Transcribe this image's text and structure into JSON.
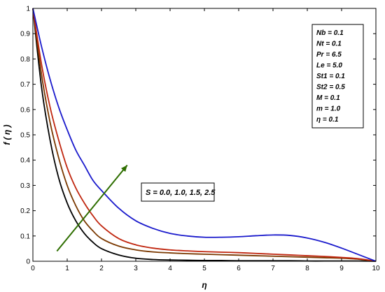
{
  "chart_data": {
    "type": "line",
    "title": "",
    "xlabel": "η",
    "ylabel": "f ( η )",
    "xlim": [
      0,
      10
    ],
    "ylim": [
      0,
      1
    ],
    "xticks": [
      0,
      1,
      2,
      3,
      4,
      5,
      6,
      7,
      8,
      9,
      10
    ],
    "yticks": [
      0,
      0.1,
      0.2,
      0.3,
      0.4,
      0.5,
      0.6,
      0.7,
      0.8,
      0.9,
      1
    ],
    "grid": false,
    "legend_placement": "top-right",
    "x": [
      0,
      0.25,
      0.5,
      0.75,
      1,
      1.25,
      1.5,
      1.75,
      2,
      2.5,
      3,
      3.5,
      4,
      4.5,
      5,
      5.5,
      6,
      6.5,
      7,
      7.5,
      8,
      8.5,
      9,
      9.5,
      10
    ],
    "series": [
      {
        "color": "#000000",
        "values": [
          1.0,
          0.69,
          0.48,
          0.33,
          0.23,
          0.16,
          0.11,
          0.075,
          0.05,
          0.025,
          0.012,
          0.007,
          0.005,
          0.004,
          0.003,
          0.003,
          0.002,
          0.002,
          0.002,
          0.002,
          0.001,
          0.001,
          0.001,
          0.001,
          0.0
        ]
      },
      {
        "color": "#7a3800",
        "values": [
          1.0,
          0.74,
          0.55,
          0.41,
          0.3,
          0.22,
          0.16,
          0.12,
          0.09,
          0.06,
          0.045,
          0.037,
          0.033,
          0.03,
          0.028,
          0.026,
          0.024,
          0.022,
          0.02,
          0.018,
          0.016,
          0.014,
          0.012,
          0.008,
          0.0
        ]
      },
      {
        "color": "#c0260f",
        "values": [
          1.0,
          0.78,
          0.61,
          0.48,
          0.37,
          0.29,
          0.23,
          0.18,
          0.14,
          0.09,
          0.065,
          0.052,
          0.045,
          0.041,
          0.038,
          0.036,
          0.034,
          0.031,
          0.028,
          0.025,
          0.022,
          0.019,
          0.015,
          0.01,
          0.0
        ]
      },
      {
        "color": "#1a1acc",
        "values": [
          1.0,
          0.85,
          0.72,
          0.61,
          0.52,
          0.44,
          0.38,
          0.32,
          0.28,
          0.21,
          0.16,
          0.13,
          0.11,
          0.1,
          0.095,
          0.095,
          0.097,
          0.101,
          0.104,
          0.102,
          0.092,
          0.075,
          0.052,
          0.026,
          0.0
        ]
      }
    ],
    "legend_lines": [
      "Nb = 0.1",
      "Nt = 0.1",
      "Pr = 6.5",
      "Le = 5.0",
      "St1 = 0.1",
      "St2 = 0.5",
      "M = 0.1",
      "m = 1.0",
      "η = 0.1"
    ],
    "annotation": {
      "text": "S = 0.0, 1.0, 1.5, 2.5",
      "arrow_color": "#2e6e00",
      "arrow_from": [
        0.7,
        0.04
      ],
      "arrow_to": [
        2.75,
        0.38
      ]
    }
  }
}
